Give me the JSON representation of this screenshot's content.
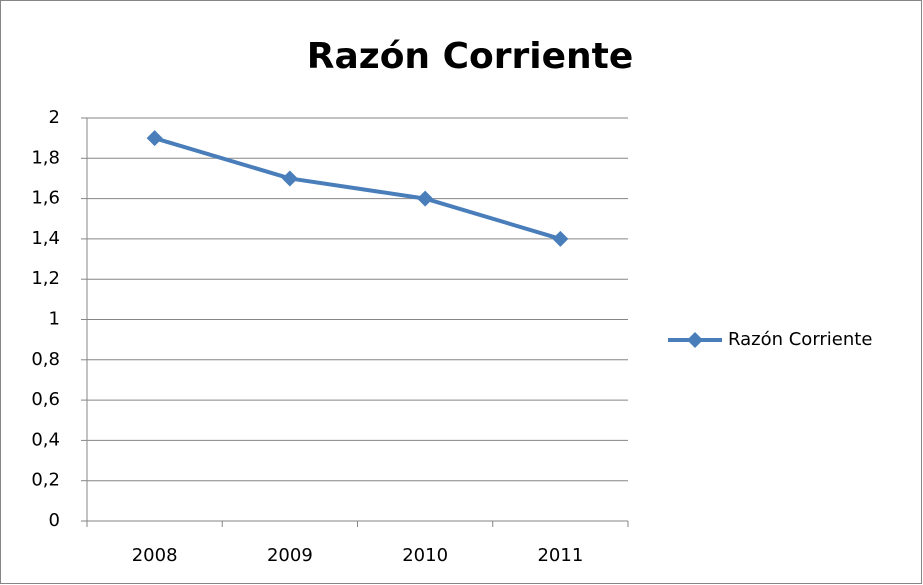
{
  "chart_data": {
    "type": "line",
    "title": "Razón Corriente",
    "categories": [
      "2008",
      "2009",
      "2010",
      "2011"
    ],
    "series": [
      {
        "name": "Razón Corriente",
        "color": "#4a7ebb",
        "values": [
          1.9,
          1.7,
          1.6,
          1.4
        ]
      }
    ],
    "ylim": [
      0,
      2
    ],
    "yticks": [
      0,
      {
        "value": 0.2,
        "label": "0,2"
      },
      {
        "value": 0.4,
        "label": "0,4"
      },
      {
        "value": 0.6,
        "label": "0,6"
      },
      {
        "value": 0.8,
        "label": "0,8"
      },
      1,
      {
        "value": 1.2,
        "label": "1,2"
      },
      {
        "value": 1.4,
        "label": "1,4"
      },
      {
        "value": 1.6,
        "label": "1,6"
      },
      {
        "value": 1.8,
        "label": "1,8"
      },
      2
    ],
    "grid": true,
    "legend": "right"
  }
}
